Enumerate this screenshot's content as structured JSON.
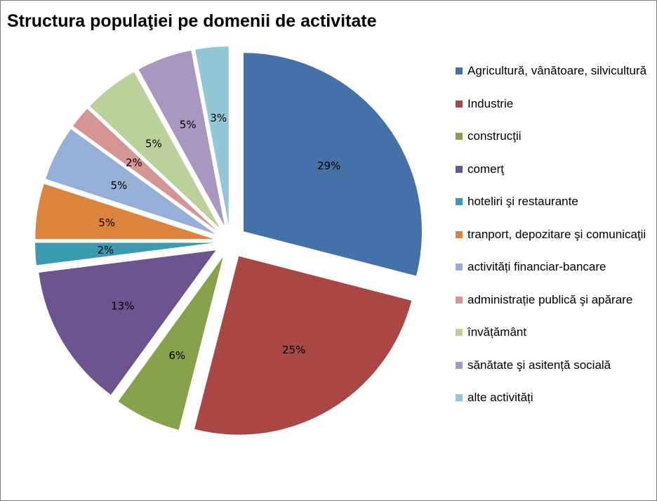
{
  "chart_data": {
    "type": "pie",
    "title": "Structura populaţiei pe domenii de activitate",
    "start_angle_deg": 0,
    "exploded": true,
    "legend_position": "right",
    "data_labels": "percent",
    "slices": [
      {
        "label": "Agricultură, vânătoare, silvicultură",
        "value": 29,
        "display": "29%",
        "color": "#4472A8"
      },
      {
        "label": "Industrie",
        "value": 25,
        "display": "25%",
        "color": "#A94744"
      },
      {
        "label": "construcţii",
        "value": 6,
        "display": "6%",
        "color": "#87A24A"
      },
      {
        "label": "comerţ",
        "value": 13,
        "display": "13%",
        "color": "#6E548F"
      },
      {
        "label": "hoteliri şi restaurante",
        "value": 2,
        "display": "2%",
        "color": "#3C9AB0"
      },
      {
        "label": "tranport, depozitare şi comunicaţii",
        "value": 5,
        "display": "5%",
        "color": "#DC833C"
      },
      {
        "label": "activități financiar-bancare",
        "value": 5,
        "display": "5%",
        "color": "#95AFD7"
      },
      {
        "label": "administrație publică şi apărare",
        "value": 2,
        "display": "2%",
        "color": "#D59594"
      },
      {
        "label": "învățământ",
        "value": 5,
        "display": "5%",
        "color": "#BBD09A"
      },
      {
        "label": "sănătate şi asitență socială",
        "value": 5,
        "display": "5%",
        "color": "#A898C0"
      },
      {
        "label": "alte activități",
        "value": 3,
        "display": "3%",
        "color": "#92C8D6"
      }
    ]
  }
}
